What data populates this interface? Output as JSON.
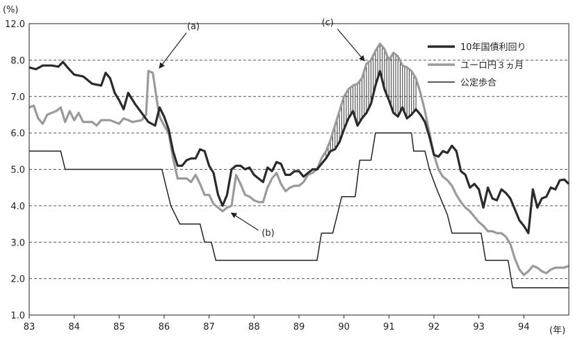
{
  "chart_data": {
    "type": "line",
    "ylabel": "(%)",
    "xunit": "(年)",
    "ylim": [
      1.0,
      12.0
    ],
    "yticks": [
      "1.0",
      "2.0",
      "3.0",
      "4.0",
      "5.0",
      "6.0",
      "7.0",
      "8.0",
      "12.0"
    ],
    "ytick_values": [
      1,
      2,
      3,
      4,
      5,
      6,
      7,
      8,
      9
    ],
    "y_axis_break": "top tick labeled 12.0 drawn at the 9.0 gridline (compressed axis)",
    "xlim": [
      83,
      95
    ],
    "xticks": [
      "83",
      "84",
      "85",
      "86",
      "87",
      "88",
      "89",
      "90",
      "91",
      "92",
      "93",
      "94"
    ],
    "grid": "horizontal dashed",
    "legend_position": "top-right",
    "series": [
      {
        "name": "10年国債利回り",
        "color": "#2a2a2a",
        "points": [
          [
            83.0,
            7.8
          ],
          [
            83.15,
            7.75
          ],
          [
            83.3,
            7.85
          ],
          [
            83.5,
            7.85
          ],
          [
            83.65,
            7.82
          ],
          [
            83.75,
            7.95
          ],
          [
            83.85,
            7.8
          ],
          [
            84.0,
            7.6
          ],
          [
            84.2,
            7.55
          ],
          [
            84.4,
            7.35
          ],
          [
            84.6,
            7.3
          ],
          [
            84.7,
            7.65
          ],
          [
            84.8,
            7.5
          ],
          [
            84.9,
            7.1
          ],
          [
            85.0,
            6.9
          ],
          [
            85.1,
            6.65
          ],
          [
            85.2,
            7.1
          ],
          [
            85.35,
            6.8
          ],
          [
            85.5,
            6.55
          ],
          [
            85.65,
            6.3
          ],
          [
            85.8,
            6.2
          ],
          [
            85.9,
            6.7
          ],
          [
            86.0,
            6.45
          ],
          [
            86.1,
            6.1
          ],
          [
            86.2,
            5.5
          ],
          [
            86.3,
            5.1
          ],
          [
            86.4,
            5.1
          ],
          [
            86.5,
            5.25
          ],
          [
            86.6,
            5.3
          ],
          [
            86.7,
            5.3
          ],
          [
            86.8,
            5.55
          ],
          [
            86.9,
            5.5
          ],
          [
            87.0,
            5.1
          ],
          [
            87.1,
            4.9
          ],
          [
            87.2,
            4.3
          ],
          [
            87.3,
            4.0
          ],
          [
            87.4,
            4.3
          ],
          [
            87.5,
            5.0
          ],
          [
            87.6,
            5.1
          ],
          [
            87.7,
            5.1
          ],
          [
            87.8,
            5.0
          ],
          [
            87.9,
            5.05
          ],
          [
            88.0,
            4.85
          ],
          [
            88.1,
            4.75
          ],
          [
            88.2,
            4.65
          ],
          [
            88.3,
            5.05
          ],
          [
            88.4,
            4.95
          ],
          [
            88.5,
            5.2
          ],
          [
            88.6,
            5.15
          ],
          [
            88.7,
            4.85
          ],
          [
            88.8,
            4.85
          ],
          [
            88.9,
            4.95
          ],
          [
            89.0,
            4.95
          ],
          [
            89.1,
            4.8
          ],
          [
            89.2,
            4.9
          ],
          [
            89.3,
            5.0
          ],
          [
            89.4,
            5.0
          ],
          [
            89.5,
            5.15
          ],
          [
            89.6,
            5.3
          ],
          [
            89.7,
            5.5
          ],
          [
            89.8,
            5.55
          ],
          [
            89.9,
            5.75
          ],
          [
            90.0,
            6.1
          ],
          [
            90.1,
            6.4
          ],
          [
            90.2,
            6.6
          ],
          [
            90.3,
            6.2
          ],
          [
            90.4,
            6.4
          ],
          [
            90.5,
            6.55
          ],
          [
            90.6,
            6.8
          ],
          [
            90.7,
            7.3
          ],
          [
            90.8,
            7.7
          ],
          [
            90.9,
            7.2
          ],
          [
            91.0,
            6.9
          ],
          [
            91.1,
            6.55
          ],
          [
            91.2,
            6.45
          ],
          [
            91.3,
            6.7
          ],
          [
            91.4,
            6.4
          ],
          [
            91.5,
            6.5
          ],
          [
            91.6,
            6.65
          ],
          [
            91.7,
            6.5
          ],
          [
            91.8,
            6.3
          ],
          [
            91.9,
            5.9
          ],
          [
            92.0,
            5.4
          ],
          [
            92.1,
            5.35
          ],
          [
            92.2,
            5.5
          ],
          [
            92.3,
            5.45
          ],
          [
            92.4,
            5.65
          ],
          [
            92.5,
            5.5
          ],
          [
            92.6,
            4.95
          ],
          [
            92.7,
            4.85
          ],
          [
            92.8,
            4.5
          ],
          [
            92.9,
            4.6
          ],
          [
            93.0,
            4.45
          ],
          [
            93.1,
            3.95
          ],
          [
            93.2,
            4.5
          ],
          [
            93.3,
            4.2
          ],
          [
            93.4,
            4.15
          ],
          [
            93.5,
            4.45
          ],
          [
            93.6,
            4.35
          ],
          [
            93.7,
            4.2
          ],
          [
            93.8,
            3.9
          ],
          [
            93.9,
            3.6
          ],
          [
            94.0,
            3.45
          ],
          [
            94.1,
            3.25
          ],
          [
            94.2,
            4.45
          ],
          [
            94.3,
            3.95
          ],
          [
            94.4,
            4.2
          ],
          [
            94.5,
            4.25
          ],
          [
            94.6,
            4.5
          ],
          [
            94.7,
            4.45
          ],
          [
            94.8,
            4.7
          ],
          [
            94.9,
            4.72
          ],
          [
            95.0,
            4.6
          ]
        ]
      },
      {
        "name": "ユーロ円３ヵ月",
        "color": "#9a9a9a",
        "points": [
          [
            83.0,
            6.7
          ],
          [
            83.1,
            6.75
          ],
          [
            83.2,
            6.4
          ],
          [
            83.3,
            6.25
          ],
          [
            83.4,
            6.5
          ],
          [
            83.6,
            6.6
          ],
          [
            83.7,
            6.7
          ],
          [
            83.8,
            6.3
          ],
          [
            83.9,
            6.6
          ],
          [
            84.0,
            6.35
          ],
          [
            84.1,
            6.55
          ],
          [
            84.2,
            6.3
          ],
          [
            84.4,
            6.3
          ],
          [
            84.5,
            6.2
          ],
          [
            84.6,
            6.35
          ],
          [
            84.8,
            6.35
          ],
          [
            85.0,
            6.25
          ],
          [
            85.1,
            6.4
          ],
          [
            85.3,
            6.3
          ],
          [
            85.5,
            6.35
          ],
          [
            85.6,
            6.5
          ],
          [
            85.65,
            7.7
          ],
          [
            85.75,
            7.65
          ],
          [
            85.85,
            6.8
          ],
          [
            85.9,
            6.45
          ],
          [
            86.0,
            6.2
          ],
          [
            86.1,
            6.0
          ],
          [
            86.2,
            5.3
          ],
          [
            86.3,
            4.75
          ],
          [
            86.4,
            4.75
          ],
          [
            86.5,
            4.75
          ],
          [
            86.6,
            4.65
          ],
          [
            86.7,
            4.85
          ],
          [
            86.8,
            4.6
          ],
          [
            86.9,
            4.3
          ],
          [
            87.0,
            4.3
          ],
          [
            87.1,
            4.05
          ],
          [
            87.2,
            3.95
          ],
          [
            87.3,
            3.85
          ],
          [
            87.4,
            3.95
          ],
          [
            87.5,
            4.0
          ],
          [
            87.6,
            4.85
          ],
          [
            87.7,
            4.6
          ],
          [
            87.8,
            4.3
          ],
          [
            87.9,
            4.25
          ],
          [
            88.0,
            4.15
          ],
          [
            88.1,
            4.1
          ],
          [
            88.2,
            4.1
          ],
          [
            88.3,
            4.5
          ],
          [
            88.4,
            4.75
          ],
          [
            88.5,
            4.9
          ],
          [
            88.6,
            4.6
          ],
          [
            88.7,
            4.4
          ],
          [
            88.8,
            4.5
          ],
          [
            88.9,
            4.55
          ],
          [
            89.0,
            4.55
          ],
          [
            89.1,
            4.65
          ],
          [
            89.2,
            4.85
          ],
          [
            89.3,
            4.9
          ],
          [
            89.4,
            5.0
          ],
          [
            89.5,
            5.3
          ],
          [
            89.6,
            5.5
          ],
          [
            89.7,
            5.8
          ],
          [
            89.8,
            6.2
          ],
          [
            89.9,
            6.6
          ],
          [
            90.0,
            7.0
          ],
          [
            90.1,
            7.2
          ],
          [
            90.2,
            7.3
          ],
          [
            90.3,
            7.35
          ],
          [
            90.4,
            7.5
          ],
          [
            90.5,
            7.9
          ],
          [
            90.6,
            8.0
          ],
          [
            90.7,
            8.25
          ],
          [
            90.8,
            8.45
          ],
          [
            90.9,
            8.3
          ],
          [
            91.0,
            8.0
          ],
          [
            91.1,
            8.2
          ],
          [
            91.2,
            8.1
          ],
          [
            91.3,
            7.85
          ],
          [
            91.4,
            7.8
          ],
          [
            91.5,
            7.7
          ],
          [
            91.6,
            7.5
          ],
          [
            91.7,
            7.1
          ],
          [
            91.8,
            6.6
          ],
          [
            91.9,
            6.0
          ],
          [
            92.0,
            5.4
          ],
          [
            92.1,
            5.0
          ],
          [
            92.2,
            4.8
          ],
          [
            92.3,
            4.7
          ],
          [
            92.4,
            4.55
          ],
          [
            92.5,
            4.3
          ],
          [
            92.6,
            4.1
          ],
          [
            92.7,
            3.95
          ],
          [
            92.8,
            3.85
          ],
          [
            92.9,
            3.7
          ],
          [
            93.0,
            3.55
          ],
          [
            93.1,
            3.45
          ],
          [
            93.2,
            3.3
          ],
          [
            93.3,
            3.3
          ],
          [
            93.4,
            3.25
          ],
          [
            93.5,
            3.25
          ],
          [
            93.6,
            3.15
          ],
          [
            93.7,
            2.95
          ],
          [
            93.8,
            2.55
          ],
          [
            93.9,
            2.25
          ],
          [
            94.0,
            2.1
          ],
          [
            94.1,
            2.2
          ],
          [
            94.2,
            2.35
          ],
          [
            94.3,
            2.3
          ],
          [
            94.4,
            2.2
          ],
          [
            94.5,
            2.15
          ],
          [
            94.6,
            2.25
          ],
          [
            94.7,
            2.3
          ],
          [
            94.8,
            2.3
          ],
          [
            94.9,
            2.3
          ],
          [
            95.0,
            2.35
          ]
        ]
      },
      {
        "name": "公定歩合",
        "color": "#222222",
        "points": [
          [
            83.0,
            5.5
          ],
          [
            83.7,
            5.5
          ],
          [
            83.8,
            5.0
          ],
          [
            85.95,
            5.0
          ],
          [
            86.05,
            4.5
          ],
          [
            86.15,
            4.0
          ],
          [
            86.35,
            3.5
          ],
          [
            86.8,
            3.5
          ],
          [
            86.9,
            3.0
          ],
          [
            87.05,
            3.0
          ],
          [
            87.15,
            2.5
          ],
          [
            89.4,
            2.5
          ],
          [
            89.5,
            3.25
          ],
          [
            89.75,
            3.25
          ],
          [
            89.85,
            3.75
          ],
          [
            89.95,
            4.25
          ],
          [
            90.25,
            4.25
          ],
          [
            90.35,
            5.25
          ],
          [
            90.6,
            5.25
          ],
          [
            90.7,
            6.0
          ],
          [
            91.5,
            6.0
          ],
          [
            91.55,
            5.5
          ],
          [
            91.8,
            5.5
          ],
          [
            91.9,
            5.0
          ],
          [
            92.05,
            4.5
          ],
          [
            92.3,
            3.75
          ],
          [
            92.4,
            3.25
          ],
          [
            93.05,
            3.25
          ],
          [
            93.15,
            2.5
          ],
          [
            93.65,
            2.5
          ],
          [
            93.75,
            1.75
          ],
          [
            95.0,
            1.75
          ]
        ]
      }
    ],
    "annotations": [
      {
        "label": "(a)",
        "target_x": 85.8,
        "target_y": 7.7
      },
      {
        "label": "(b)",
        "target_x": 87.4,
        "target_y": 3.9
      },
      {
        "label": "(c)",
        "target_x": 90.55,
        "target_y": 7.9
      }
    ],
    "shaded_region": {
      "description": "vertical hatching between 10年国債利回り and ユーロ円３ヵ月",
      "x_start": 89.6,
      "x_end": 91.6
    }
  }
}
